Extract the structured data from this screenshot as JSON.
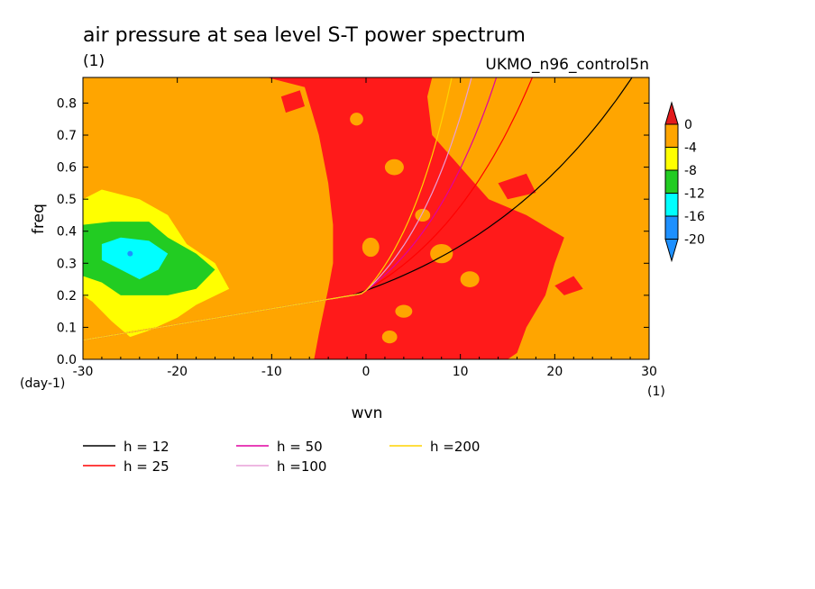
{
  "chart_data": {
    "type": "heatmap",
    "title": "air pressure at sea level S-T power spectrum",
    "subtitle_units": "(1)",
    "model_label": "UKMO_n96_control5n",
    "xlabel": "wvn",
    "ylabel": "freq",
    "x_unit": "(1)",
    "y_unit": "(day-1)",
    "xlim": [
      -30,
      30
    ],
    "ylim": [
      0,
      0.88
    ],
    "xticks": [
      -30,
      -20,
      -10,
      0,
      10,
      20,
      30
    ],
    "yticks": [
      0.0,
      0.1,
      0.2,
      0.3,
      0.4,
      0.5,
      0.6,
      0.7,
      0.8
    ],
    "xtick_labels": [
      "-30",
      "-20",
      "-10",
      "0",
      "10",
      "20",
      "30"
    ],
    "ytick_labels": [
      "0.0",
      "0.1",
      "0.2",
      "0.3",
      "0.4",
      "0.5",
      "0.6",
      "0.7",
      "0.8"
    ],
    "colorbar": {
      "labels": [
        "0",
        "-4",
        "-8",
        "-12",
        "-16",
        "-20"
      ],
      "colors": [
        "#e31a1c",
        "#ffa500",
        "#ffff00",
        "#22cc22",
        "#00ffff",
        "#1e90ff",
        "#1e90ff"
      ],
      "extend": "both"
    },
    "background_level_color": "#ffa500",
    "regions": [
      {
        "level": "0",
        "color": "#ff1a1a",
        "description_points": [
          [
            -2,
            0.02
          ],
          [
            2,
            0.85
          ],
          [
            10,
            0.6
          ],
          [
            18,
            0.2
          ]
        ]
      },
      {
        "level": "-8",
        "color": "#ffff00",
        "center": [
          -24,
          0.32
        ]
      },
      {
        "level": "-12",
        "color": "#22cc22",
        "center": [
          -24,
          0.33
        ]
      },
      {
        "level": "-16",
        "color": "#00ffff",
        "center": [
          -25,
          0.33
        ]
      }
    ],
    "series": [
      {
        "name": "h = 12",
        "color": "#000000",
        "h": 12
      },
      {
        "name": "h = 25",
        "color": "#ff0000",
        "h": 25
      },
      {
        "name": "h = 50",
        "color": "#e000a0",
        "h": 50
      },
      {
        "name": "h =100",
        "color": "#e8a0d8",
        "h": 100
      },
      {
        "name": "h =200",
        "color": "#ffd400",
        "h": 200
      }
    ],
    "grid": false,
    "legend_placement": "bottom"
  }
}
